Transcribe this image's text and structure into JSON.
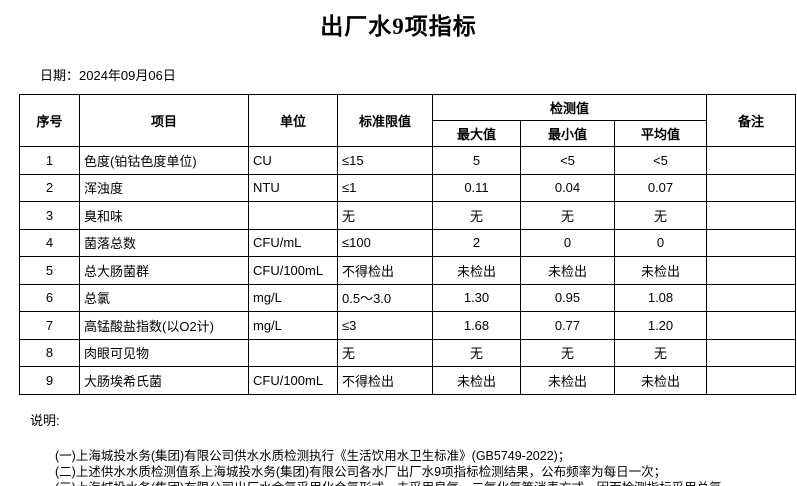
{
  "title": "出厂水9项指标",
  "date_label": "日期：2024年09月06日",
  "table": {
    "headers": {
      "seq": "序号",
      "item": "项目",
      "unit": "单位",
      "limit": "标准限值",
      "detection": "检测值",
      "max": "最大值",
      "min": "最小值",
      "avg": "平均值",
      "remark": "备注"
    },
    "rows": [
      {
        "seq": "1",
        "item": "色度(铂钴色度单位)",
        "unit": "CU",
        "limit": "≤15",
        "max": "5",
        "min": "<5",
        "avg": "<5",
        "remark": ""
      },
      {
        "seq": "2",
        "item": "浑浊度",
        "unit": "NTU",
        "limit": "≤1",
        "max": "0.11",
        "min": "0.04",
        "avg": "0.07",
        "remark": ""
      },
      {
        "seq": "3",
        "item": "臭和味",
        "unit": "",
        "limit": "无",
        "max": "无",
        "min": "无",
        "avg": "无",
        "remark": ""
      },
      {
        "seq": "4",
        "item": "菌落总数",
        "unit": "CFU/mL",
        "limit": "≤100",
        "max": "2",
        "min": "0",
        "avg": "0",
        "remark": ""
      },
      {
        "seq": "5",
        "item": "总大肠菌群",
        "unit": "CFU/100mL",
        "limit": "不得检出",
        "max": "未检出",
        "min": "未检出",
        "avg": "未检出",
        "remark": ""
      },
      {
        "seq": "6",
        "item": "总氯",
        "unit": "mg/L",
        "limit": "0.5～3.0",
        "max": "1.30",
        "min": "0.95",
        "avg": "1.08",
        "remark": ""
      },
      {
        "seq": "7",
        "item": "高锰酸盐指数(以O2计)",
        "unit": "mg/L",
        "limit": "≤3",
        "max": "1.68",
        "min": "0.77",
        "avg": "1.20",
        "remark": ""
      },
      {
        "seq": "8",
        "item": "肉眼可见物",
        "unit": "",
        "limit": "无",
        "max": "无",
        "min": "无",
        "avg": "无",
        "remark": ""
      },
      {
        "seq": "9",
        "item": "大肠埃希氏菌",
        "unit": "CFU/100mL",
        "limit": "不得检出",
        "max": "未检出",
        "min": "未检出",
        "avg": "未检出",
        "remark": ""
      }
    ]
  },
  "notes": {
    "label": "说明:",
    "items": [
      "(一)上海城投水务(集团)有限公司供水水质检测执行《生活饮用水卫生标准》(GB5749-2022)；",
      "(二)上述供水水质检测值系上海城投水务(集团)有限公司各水厂出厂水9项指标检测结果，公布频率为每日一次；",
      "(三)上海城投水务(集团)有限公司出厂水余氯采用化合氯形式，未采用臭氧、二氧化氯等消毒方式，因而检测指标采用总氯。"
    ]
  },
  "colors": {
    "text": "#000000",
    "background": "#ffffff",
    "border": "#000000"
  }
}
